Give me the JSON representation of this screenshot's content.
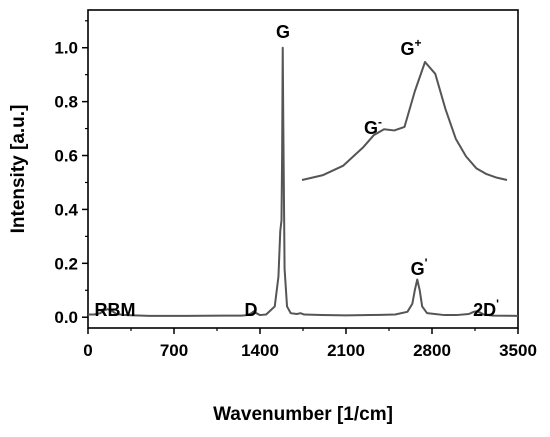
{
  "chart_data": {
    "type": "line",
    "title": "",
    "xlabel": "Wavenumber [1/cm]",
    "ylabel": "Intensity [a.u.]",
    "xlim": [
      0,
      3500
    ],
    "ylim": [
      -0.04,
      1.14
    ],
    "xticks": [
      "0",
      "700",
      "1400",
      "2100",
      "2800",
      "3500"
    ],
    "xtick_values": [
      0,
      700,
      1400,
      2100,
      2800,
      3500
    ],
    "yticks": [
      "0.0",
      "0.2",
      "0.4",
      "0.6",
      "0.8",
      "1.0"
    ],
    "ytick_values": [
      0.0,
      0.2,
      0.4,
      0.6,
      0.8,
      1.0
    ],
    "grid": false,
    "line_color": "#555555",
    "series": [
      {
        "x": [
          0,
          50,
          100,
          130,
          160,
          190,
          230,
          300,
          500,
          800,
          1100,
          1250,
          1300,
          1330,
          1350,
          1370,
          1400,
          1450,
          1520,
          1550,
          1565,
          1575,
          1580,
          1585,
          1590,
          1600,
          1620,
          1650,
          1700,
          1730,
          1760,
          1900,
          2100,
          2300,
          2500,
          2600,
          2640,
          2660,
          2680,
          2700,
          2720,
          2760,
          2900,
          3000,
          3100,
          3140,
          3160,
          3190,
          3220,
          3300,
          3500
        ],
        "y": [
          0.01,
          0.01,
          0.015,
          0.025,
          0.03,
          0.025,
          0.012,
          0.008,
          0.005,
          0.005,
          0.006,
          0.006,
          0.008,
          0.015,
          0.022,
          0.015,
          0.008,
          0.01,
          0.04,
          0.15,
          0.32,
          0.36,
          0.6,
          1.0,
          0.7,
          0.18,
          0.04,
          0.015,
          0.012,
          0.015,
          0.01,
          0.008,
          0.007,
          0.008,
          0.01,
          0.02,
          0.05,
          0.1,
          0.14,
          0.1,
          0.04,
          0.015,
          0.008,
          0.008,
          0.012,
          0.02,
          0.022,
          0.018,
          0.01,
          0.006,
          0.005
        ]
      }
    ],
    "annotations": [
      {
        "text": "RBM",
        "sup": "",
        "x": 220,
        "y": 0.04
      },
      {
        "text": "D",
        "sup": "",
        "x": 1325,
        "y": 0.04
      },
      {
        "text": "G",
        "sup": "",
        "x": 1585,
        "y": 1.05
      },
      {
        "text": "G",
        "sup": "'",
        "x": 2680,
        "y": 0.18
      },
      {
        "text": "2D",
        "sup": "'",
        "x": 3150,
        "y": 0.04
      },
      {
        "text": "G",
        "sup": "-",
        "x": 2300,
        "y": 0.68
      },
      {
        "text": "G",
        "sup": "+",
        "x": 2660,
        "y": 0.97
      }
    ],
    "inset": {
      "description": "zoom of G band",
      "xlim": [
        0,
        1
      ],
      "ylim": [
        0,
        1
      ],
      "x": [
        0.0,
        0.1,
        0.2,
        0.3,
        0.35,
        0.4,
        0.45,
        0.5,
        0.55,
        0.6,
        0.65,
        0.7,
        0.75,
        0.8,
        0.85,
        0.9,
        0.95,
        1.0
      ],
      "y": [
        0.0,
        0.04,
        0.12,
        0.28,
        0.38,
        0.43,
        0.42,
        0.45,
        0.75,
        1.0,
        0.9,
        0.6,
        0.35,
        0.2,
        0.1,
        0.05,
        0.02,
        0.0
      ]
    }
  }
}
